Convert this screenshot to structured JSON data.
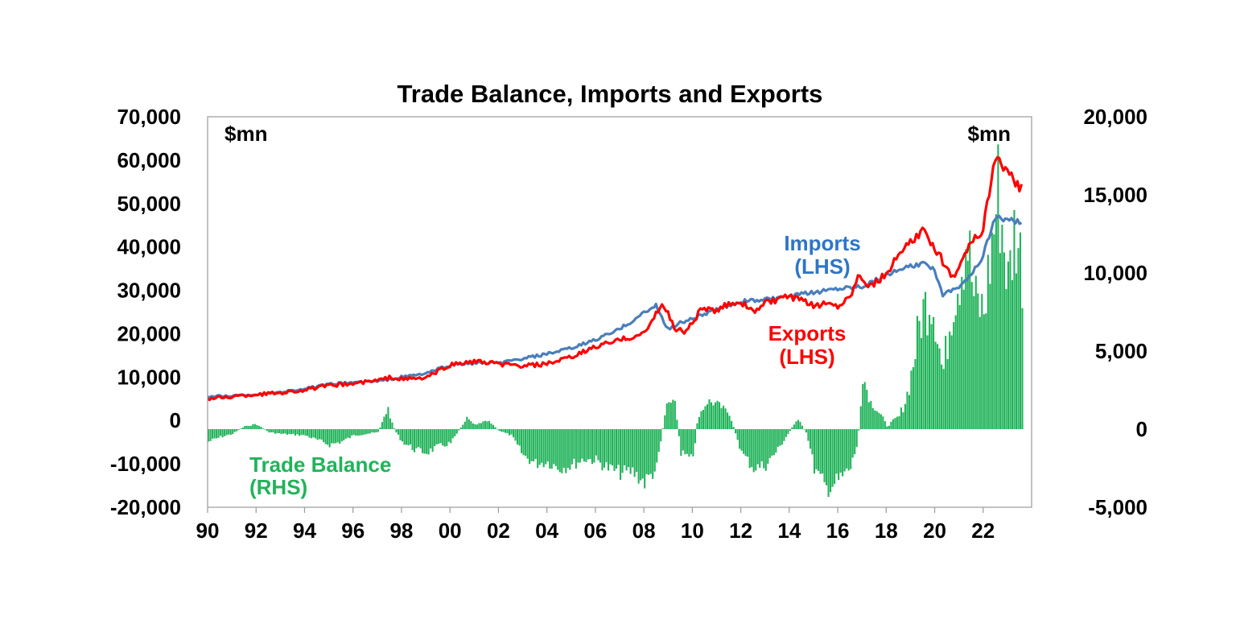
{
  "chart_data": {
    "type": "bar+line",
    "title": "Trade Balance, Imports and Exports",
    "left_unit": "$mn",
    "right_unit": "$mn",
    "left_axis": {
      "min": -20000,
      "max": 70000,
      "ticks": [
        -20000,
        -10000,
        0,
        10000,
        20000,
        30000,
        40000,
        50000,
        60000,
        70000
      ],
      "tick_labels": [
        "-20,000",
        "-10,000",
        "0",
        "10,000",
        "20,000",
        "30,000",
        "40,000",
        "50,000",
        "60,000",
        "70,000"
      ]
    },
    "right_axis": {
      "min": -5000,
      "max": 20000,
      "ticks": [
        -5000,
        0,
        5000,
        10000,
        15000,
        20000
      ],
      "tick_labels": [
        "-5,000",
        "0",
        "5,000",
        "10,000",
        "15,000",
        "20,000"
      ]
    },
    "x_axis": {
      "min": 1990,
      "max": 2024,
      "ticks": [
        1990,
        1992,
        1994,
        1996,
        1998,
        2000,
        2002,
        2004,
        2006,
        2008,
        2010,
        2012,
        2014,
        2016,
        2018,
        2020,
        2022
      ],
      "tick_labels": [
        "90",
        "92",
        "94",
        "96",
        "98",
        "00",
        "02",
        "04",
        "06",
        "08",
        "10",
        "12",
        "14",
        "16",
        "18",
        "20",
        "22"
      ]
    },
    "colors": {
      "imports": "#4a7ebb",
      "exports": "#ff0000",
      "balance": "#21b35a",
      "imports_label": "#2e75c6"
    },
    "annotations": {
      "imports": [
        "Imports",
        "(LHS)"
      ],
      "exports": [
        "Exports",
        "(LHS)"
      ],
      "balance": [
        "Trade Balance",
        "(RHS)"
      ]
    },
    "series": [
      {
        "name": "Imports (LHS)",
        "axis": "left",
        "x": [
          1990,
          1991,
          1992,
          1993,
          1994,
          1995,
          1996,
          1997,
          1998,
          1999,
          2000,
          2001,
          2002,
          2003,
          2004,
          2005,
          2006,
          2007,
          2008,
          2008.5,
          2009,
          2009.5,
          2010,
          2011,
          2012,
          2013,
          2014,
          2015,
          2016,
          2017,
          2018,
          2019,
          2019.5,
          2020,
          2020.3,
          2021,
          2021.5,
          2022,
          2022.5,
          2023,
          2023.6
        ],
        "y": [
          5500,
          5700,
          6000,
          6600,
          7300,
          8300,
          8800,
          9000,
          10000,
          10800,
          12800,
          13200,
          13200,
          14200,
          15300,
          16600,
          18600,
          21000,
          24800,
          26400,
          21000,
          22500,
          23500,
          25500,
          27500,
          27800,
          28500,
          29500,
          30500,
          31000,
          33500,
          35500,
          36000,
          35000,
          29000,
          31000,
          33500,
          38000,
          47000,
          46000,
          46000
        ]
      },
      {
        "name": "Exports (LHS)",
        "axis": "left",
        "x": [
          1990,
          1991,
          1992,
          1993,
          1994,
          1995,
          1996,
          1997,
          1997.6,
          1998,
          1999,
          2000,
          2001,
          2002,
          2003,
          2004,
          2005,
          2006,
          2007,
          2008,
          2008.8,
          2009.3,
          2009.7,
          2010,
          2010.4,
          2011,
          2011.5,
          2012,
          2012.5,
          2013,
          2014,
          2014.5,
          2015,
          2015.5,
          2016,
          2016.5,
          2016.9,
          2017.3,
          2018,
          2018.5,
          2019,
          2019.5,
          2020,
          2020.5,
          2020.8,
          2021,
          2021.5,
          2022,
          2022.5,
          2023,
          2023.5,
          2023.6
        ],
        "y": [
          5000,
          5500,
          6000,
          6400,
          7000,
          8000,
          8500,
          9200,
          10000,
          9500,
          9800,
          12800,
          13600,
          13000,
          12500,
          13000,
          14500,
          17000,
          18500,
          20000,
          27000,
          21000,
          20500,
          22500,
          26000,
          25000,
          27000,
          27500,
          25000,
          27000,
          28500,
          27500,
          26500,
          27000,
          26500,
          28500,
          34000,
          31000,
          33500,
          38000,
          41000,
          43500,
          40000,
          35000,
          33000,
          36000,
          41000,
          44000,
          61000,
          57000,
          54000,
          55500
        ]
      },
      {
        "name": "Trade Balance (RHS)",
        "axis": "right",
        "type": "bar",
        "x": [
          1990,
          1990.5,
          1991,
          1991.5,
          1992,
          1992.5,
          1993,
          1994,
          1994.5,
          1995,
          1995.5,
          1996,
          1997,
          1997.4,
          1997.7,
          1998,
          1998.5,
          1999,
          1999.5,
          2000,
          2000.7,
          2001,
          2001.5,
          2002,
          2002.5,
          2003,
          2003.5,
          2004,
          2004.5,
          2005,
          2005.5,
          2006,
          2006.5,
          2007,
          2007.5,
          2008,
          2008.5,
          2008.9,
          2009.2,
          2009.5,
          2010,
          2010.2,
          2010.6,
          2011,
          2011.5,
          2012,
          2012.5,
          2013,
          2013.5,
          2014,
          2014.3,
          2014.7,
          2015,
          2015.5,
          2016,
          2016.5,
          2016.8,
          2017,
          2017.3,
          2017.8,
          2018,
          2018.5,
          2018.8,
          2019,
          2019.4,
          2019.8,
          2020,
          2020.3,
          2020.7,
          2021,
          2021.3,
          2021.6,
          2022,
          2022.3,
          2022.6,
          2023,
          2023.3,
          2023.6
        ],
        "y": [
          -800,
          -500,
          -300,
          200,
          300,
          -200,
          -300,
          -400,
          -700,
          -1000,
          -800,
          -400,
          -200,
          1300,
          -100,
          -800,
          -1300,
          -1500,
          -1100,
          -900,
          800,
          300,
          600,
          -100,
          -400,
          -1700,
          -2200,
          -2100,
          -2500,
          -2300,
          -1900,
          -2000,
          -2500,
          -2800,
          -2700,
          -3400,
          -2500,
          1600,
          2300,
          -1500,
          -2000,
          800,
          1800,
          1600,
          1000,
          -1500,
          -2500,
          -2300,
          -1300,
          -100,
          700,
          -300,
          -2500,
          -3800,
          -3300,
          -2500,
          -800,
          3500,
          1800,
          800,
          200,
          800,
          2000,
          3500,
          7200,
          8700,
          7400,
          3400,
          8200,
          10100,
          12500,
          8200,
          7500,
          11400,
          15400,
          9300,
          13100,
          10000
        ]
      }
    ]
  }
}
